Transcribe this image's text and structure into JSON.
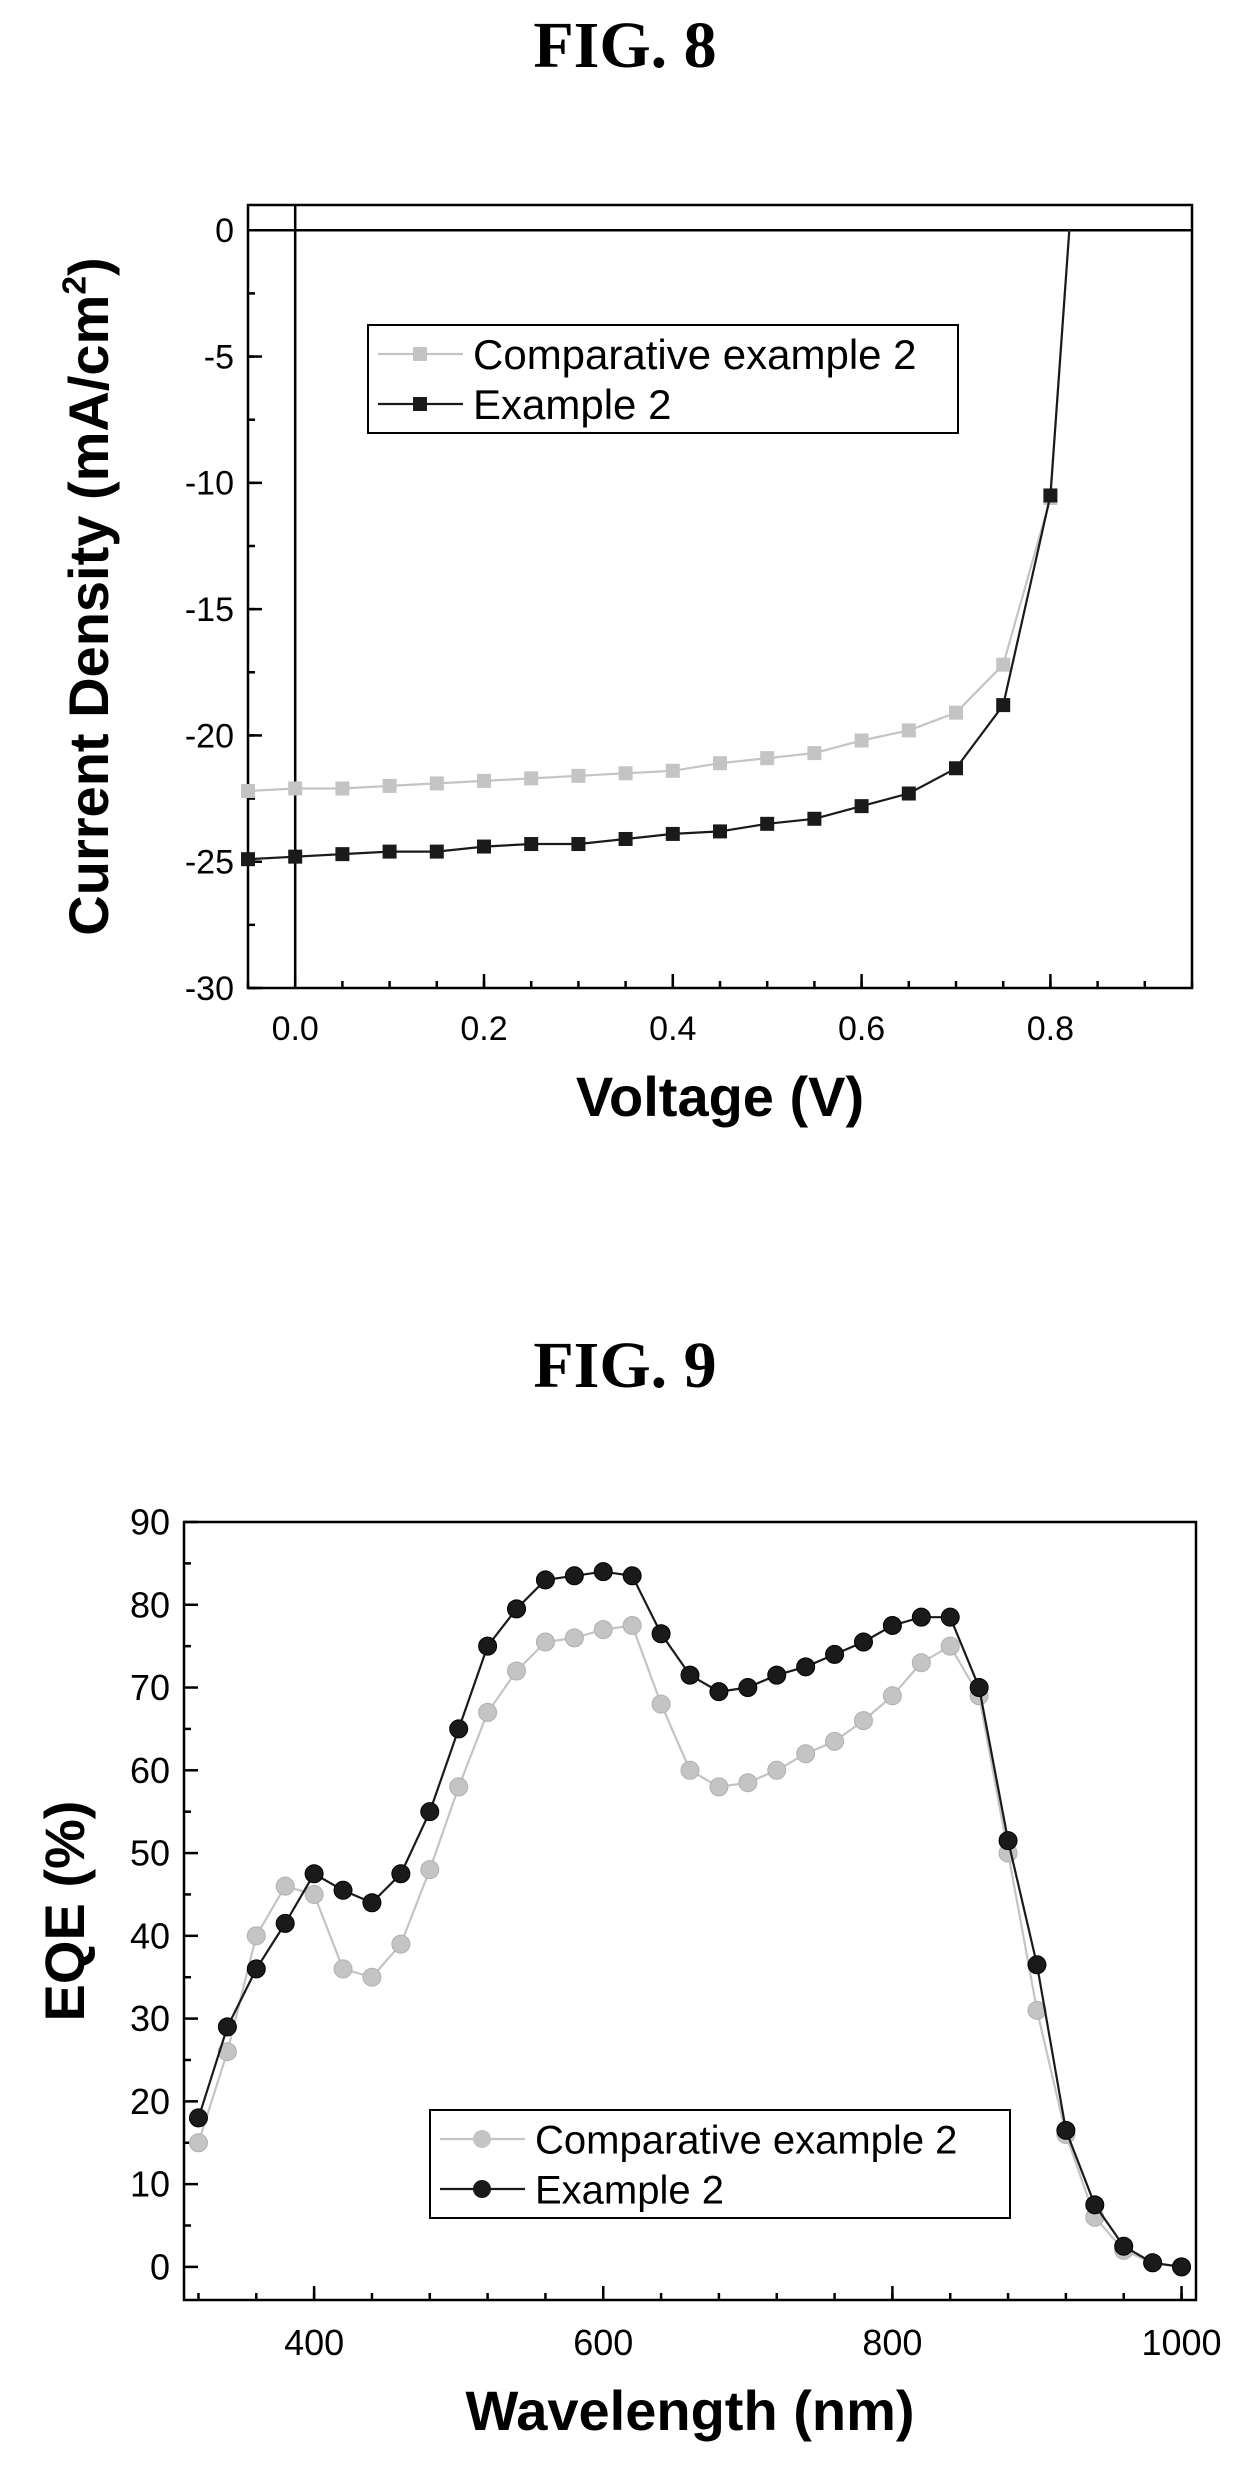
{
  "figures": {
    "fig8_title": "FIG. 8",
    "fig9_title": "FIG. 9"
  },
  "chart_data": [
    {
      "type": "line",
      "title": "FIG. 8",
      "xlabel": "Voltage (V)",
      "ylabel": "Current Density (mA/cm2)",
      "xlim": [
        -0.05,
        0.95
      ],
      "ylim": [
        -30,
        1
      ],
      "x_ticks": [
        "0.0",
        "0.2",
        "0.4",
        "0.6",
        "0.8"
      ],
      "y_ticks": [
        "0",
        "-5",
        "-10",
        "-15",
        "-20",
        "-25",
        "-30"
      ],
      "legend_position": "upper-left",
      "series": [
        {
          "name": "Comparative example 2",
          "color": "#c4c4c4",
          "marker": "square",
          "x": [
            -0.05,
            0.0,
            0.05,
            0.1,
            0.15,
            0.2,
            0.25,
            0.3,
            0.35,
            0.4,
            0.45,
            0.5,
            0.55,
            0.6,
            0.65,
            0.7,
            0.75,
            0.8,
            0.82
          ],
          "y": [
            -22.2,
            -22.1,
            -22.1,
            -22.0,
            -21.9,
            -21.8,
            -21.7,
            -21.6,
            -21.5,
            -21.4,
            -21.1,
            -20.9,
            -20.7,
            -20.2,
            -19.8,
            -19.1,
            -17.2,
            -10.6,
            0
          ]
        },
        {
          "name": "Example 2",
          "color": "#1a1a1a",
          "marker": "square",
          "x": [
            -0.05,
            0.0,
            0.05,
            0.1,
            0.15,
            0.2,
            0.25,
            0.3,
            0.35,
            0.4,
            0.45,
            0.5,
            0.55,
            0.6,
            0.65,
            0.7,
            0.75,
            0.8,
            0.82
          ],
          "y": [
            -24.9,
            -24.8,
            -24.7,
            -24.6,
            -24.6,
            -24.4,
            -24.3,
            -24.3,
            -24.1,
            -23.9,
            -23.8,
            -23.5,
            -23.3,
            -22.8,
            -22.3,
            -21.3,
            -18.8,
            -10.5,
            0
          ]
        }
      ]
    },
    {
      "type": "line",
      "title": "FIG. 9",
      "xlabel": "Wavelength (nm)",
      "ylabel": "EQE (%)",
      "xlim": [
        310,
        1010
      ],
      "ylim": [
        -4,
        90
      ],
      "x_ticks": [
        "400",
        "600",
        "800",
        "1000"
      ],
      "y_ticks": [
        "0",
        "10",
        "20",
        "30",
        "40",
        "50",
        "60",
        "70",
        "80",
        "90"
      ],
      "legend_position": "lower-left",
      "series": [
        {
          "name": "Comparative example 2",
          "color": "#c4c4c4",
          "marker": "circle",
          "x": [
            320,
            340,
            360,
            380,
            400,
            420,
            440,
            460,
            480,
            500,
            520,
            540,
            560,
            580,
            600,
            620,
            640,
            660,
            680,
            700,
            720,
            740,
            760,
            780,
            800,
            820,
            840,
            860,
            880,
            900,
            920,
            940,
            960,
            980,
            1000
          ],
          "y": [
            15,
            26,
            40,
            46,
            45,
            36,
            35,
            39,
            48,
            58,
            67,
            72,
            75.5,
            76,
            77,
            77.5,
            68,
            60,
            58,
            58.5,
            60,
            62,
            63.5,
            66,
            69,
            73,
            75,
            69,
            50,
            31,
            16,
            6,
            2,
            0.5,
            0
          ]
        },
        {
          "name": "Example 2",
          "color": "#1a1a1a",
          "marker": "circle",
          "x": [
            320,
            340,
            360,
            380,
            400,
            420,
            440,
            460,
            480,
            500,
            520,
            540,
            560,
            580,
            600,
            620,
            640,
            660,
            680,
            700,
            720,
            740,
            760,
            780,
            800,
            820,
            840,
            860,
            880,
            900,
            920,
            940,
            960,
            980,
            1000
          ],
          "y": [
            18,
            29,
            36,
            41.5,
            47.5,
            45.5,
            44,
            47.5,
            55,
            65,
            75,
            79.5,
            83,
            83.5,
            84,
            83.5,
            76.5,
            71.5,
            69.5,
            70,
            71.5,
            72.5,
            74,
            75.5,
            77.5,
            78.5,
            78.5,
            70,
            51.5,
            36.5,
            16.5,
            7.5,
            2.5,
            0.5,
            0
          ]
        }
      ]
    }
  ]
}
